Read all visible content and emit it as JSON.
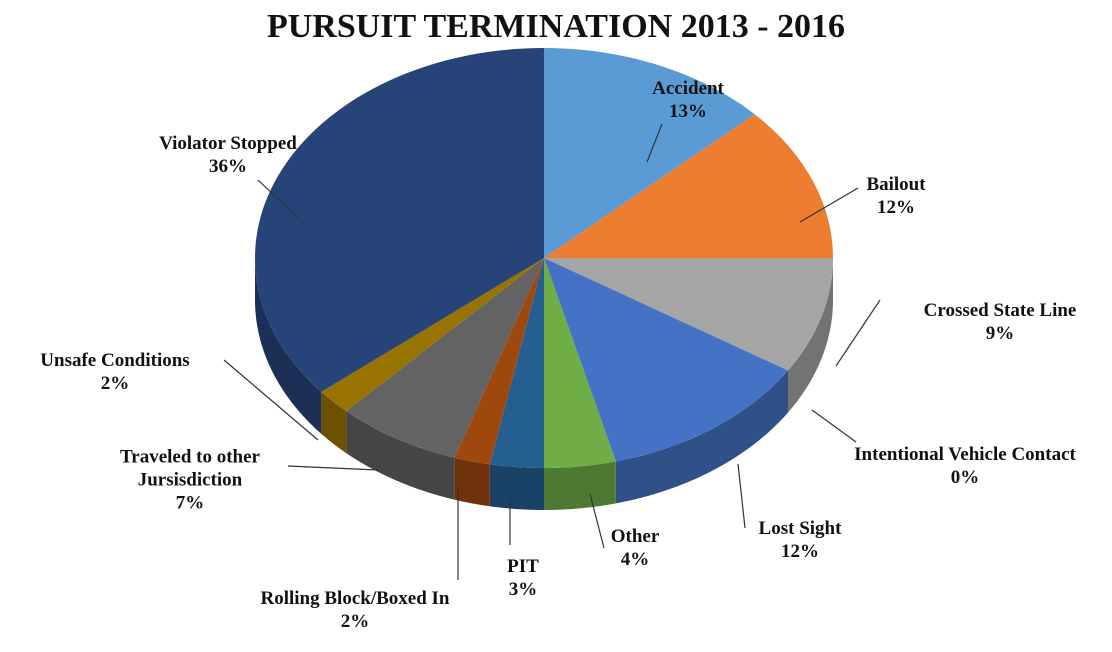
{
  "chart_data": {
    "type": "pie",
    "title": "PURSUIT TERMINATION 2013 - 2016",
    "categories": [
      "Accident",
      "Bailout",
      "Crossed State Line",
      "Intentional Vehicle Contact",
      "Lost Sight",
      "Other",
      "PIT",
      "Rolling Block/Boxed In",
      "Traveled to other Jursisdiction",
      "Unsafe Conditions",
      "Violator Stopped"
    ],
    "values": [
      13,
      12,
      9,
      0,
      12,
      4,
      3,
      2,
      7,
      2,
      36
    ],
    "value_labels": [
      "13%",
      "12%",
      "9%",
      "0%",
      "12%",
      "4%",
      "3%",
      "2%",
      "7%",
      "2%",
      "36%"
    ],
    "colors": [
      "#5b9bd5",
      "#ed7d31",
      "#a5a5a5",
      "#ffc000",
      "#4472c4",
      "#70ad47",
      "#255e91",
      "#9e480e",
      "#636363",
      "#997300",
      "#264478"
    ]
  }
}
